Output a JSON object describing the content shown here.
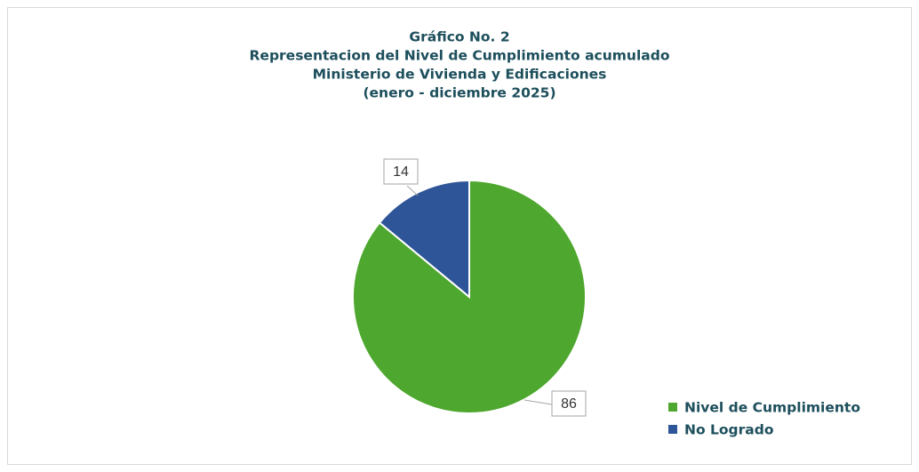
{
  "chart_data": {
    "type": "pie",
    "title": [
      "Gráfico No. 2",
      "Representacion del Nivel de Cumplimiento acumulado",
      "Ministerio de Vivienda y Edificaciones",
      "(enero - diciembre 2025)"
    ],
    "categories": [
      "Nivel de Cumplimiento",
      "No Logrado"
    ],
    "values": [
      86,
      14
    ],
    "colors": [
      "#4ea72e",
      "#2e5597"
    ],
    "legend": "right"
  }
}
